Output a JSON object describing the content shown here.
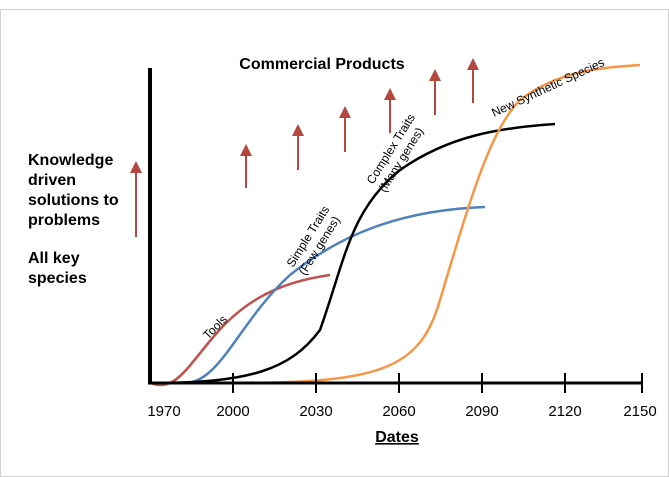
{
  "title": "Commercial Products",
  "left_text": [
    "Knowledge",
    "driven",
    "solutions to",
    "problems",
    "All key",
    "species"
  ],
  "curve_labels": [
    [
      "Tools"
    ],
    [
      "Simple Traits",
      "(Few genes)"
    ],
    [
      "Complex Traits",
      "(Many genes)"
    ],
    [
      "New Synthetic Species"
    ]
  ],
  "ticks": [
    1970,
    2000,
    2030,
    2060,
    2090,
    2120,
    2150
  ],
  "x_axis_title": "Dates"
}
